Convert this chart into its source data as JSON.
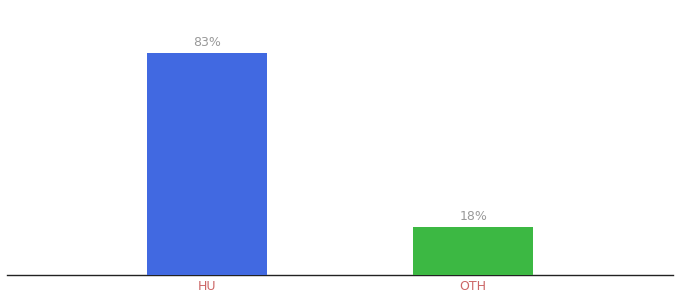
{
  "categories": [
    "HU",
    "OTH"
  ],
  "values": [
    83,
    18
  ],
  "bar_colors": [
    "#4169E1",
    "#3CB843"
  ],
  "labels": [
    "83%",
    "18%"
  ],
  "title_fontsize": 10,
  "label_fontsize": 9,
  "tick_fontsize": 9,
  "tick_color": "#cc6666",
  "label_color": "#999999",
  "background_color": "#ffffff",
  "ylim": [
    0,
    100
  ],
  "bar_width": 0.18,
  "x_positions": [
    0.3,
    0.7
  ],
  "xlim": [
    0.0,
    1.0
  ]
}
